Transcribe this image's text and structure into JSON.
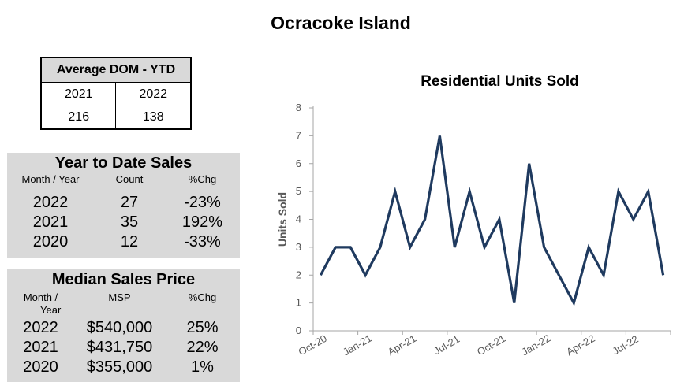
{
  "page_title": "Ocracoke Island",
  "dom_table": {
    "title": "Average DOM - YTD",
    "years": [
      "2021",
      "2022"
    ],
    "values": [
      "216",
      "138"
    ]
  },
  "ytd_sales": {
    "title": "Year to Date Sales",
    "headers": [
      "Month / Year",
      "Count",
      "%Chg"
    ],
    "rows": [
      {
        "year": "2022",
        "count": "27",
        "chg": "-23%"
      },
      {
        "year": "2021",
        "count": "35",
        "chg": "192%"
      },
      {
        "year": "2020",
        "count": "12",
        "chg": "-33%"
      }
    ]
  },
  "median_price": {
    "title": "Median Sales Price",
    "headers": [
      "Month /",
      "Year",
      "MSP",
      "%Chg"
    ],
    "rows": [
      {
        "year": "2022",
        "price": "$540,000",
        "chg": "25%"
      },
      {
        "year": "2021",
        "price": "$431,750",
        "chg": "22%"
      },
      {
        "year": "2020",
        "price": "$355,000",
        "chg": "1%"
      }
    ]
  },
  "chart_data": {
    "type": "line",
    "title": "Residential Units Sold",
    "xlabel": "",
    "ylabel": "Units Sold",
    "ylim": [
      0,
      8
    ],
    "yticks": [
      0,
      1,
      2,
      3,
      4,
      5,
      6,
      7,
      8
    ],
    "x": [
      "Oct-20",
      "Nov-20",
      "Dec-20",
      "Jan-21",
      "Feb-21",
      "Mar-21",
      "Apr-21",
      "May-21",
      "Jun-21",
      "Jul-21",
      "Aug-21",
      "Sep-21",
      "Oct-21",
      "Nov-21",
      "Dec-21",
      "Jan-22",
      "Feb-22",
      "Mar-22",
      "Apr-22",
      "May-22",
      "Jun-22",
      "Jul-22",
      "Aug-22",
      "Sep-22"
    ],
    "tick_labels": [
      "Oct-20",
      "Jan-21",
      "Apr-21",
      "Jul-21",
      "Oct-21",
      "Jan-22",
      "Apr-22",
      "Jul-22"
    ],
    "series": [
      {
        "values": [
          2,
          3,
          3,
          2,
          3,
          5,
          3,
          4,
          7,
          3,
          5,
          3,
          4,
          1,
          6,
          3,
          2,
          1,
          3,
          2,
          5,
          4,
          5,
          2
        ]
      }
    ],
    "line_color": "#1f3a5f",
    "grid": false,
    "legend": "none"
  }
}
